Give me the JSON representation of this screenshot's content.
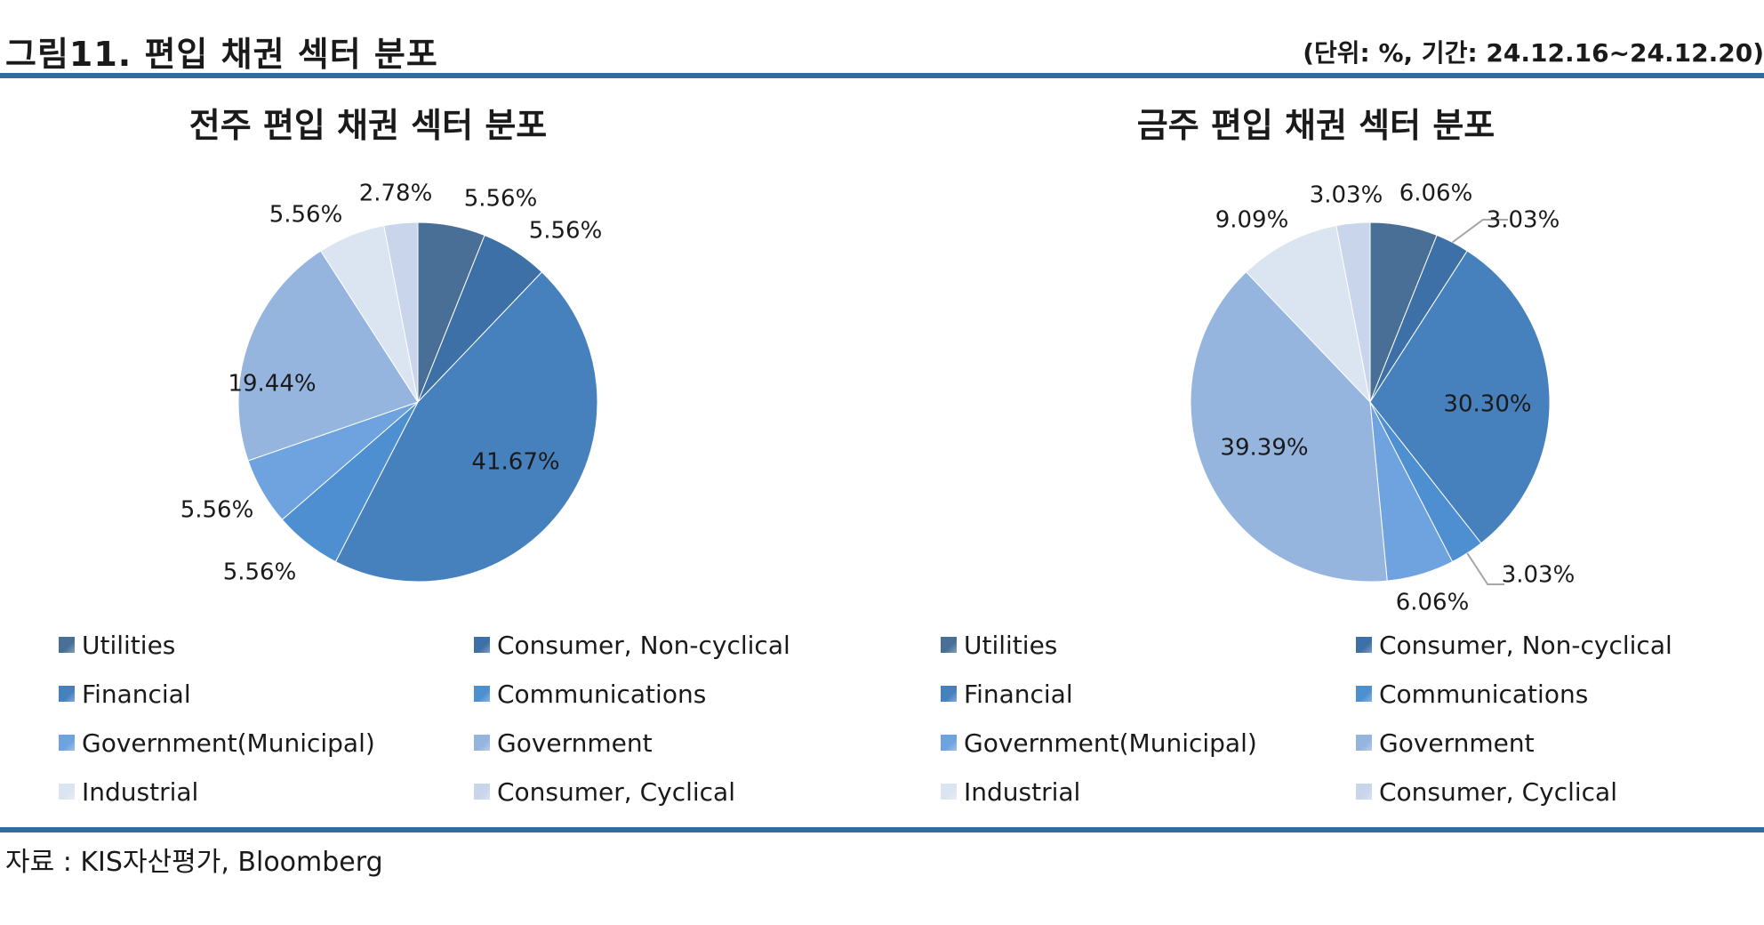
{
  "header": {
    "title": "그림11. 편입 채권 섹터 분포",
    "unit_note": "(단위: %, 기간: 24.12.16~24.12.20)"
  },
  "colors": {
    "Utilities": "#4a6f97",
    "Consumer, Non-cyclical": "#3d70a6",
    "Financial": "#4680bd",
    "Communications": "#4e8fd1",
    "Government(Municipal)": "#6ea3df",
    "Government": "#95b5df",
    "Industrial": "#dbe4f1",
    "Consumer, Cyclical": "#c9d5ea",
    "rule": "#2e6ca8"
  },
  "chart_data": [
    {
      "type": "pie",
      "title": "전주 편입 채권 섹터 분포",
      "categories": [
        "Utilities",
        "Consumer, Non-cyclical",
        "Financial",
        "Communications",
        "Government(Municipal)",
        "Government",
        "Industrial",
        "Consumer, Cyclical"
      ],
      "values": [
        5.56,
        5.56,
        41.67,
        5.56,
        5.56,
        19.44,
        5.56,
        2.78
      ],
      "labels": [
        "5.56%",
        "5.56%",
        "41.67%",
        "5.56%",
        "5.56%",
        "19.44%",
        "5.56%",
        "2.78%"
      ],
      "legend_position": "bottom"
    },
    {
      "type": "pie",
      "title": "금주 편입 채권 섹터 분포",
      "categories": [
        "Utilities",
        "Consumer, Non-cyclical",
        "Financial",
        "Communications",
        "Government(Municipal)",
        "Government",
        "Industrial",
        "Consumer, Cyclical"
      ],
      "values": [
        6.06,
        3.03,
        30.3,
        3.03,
        6.06,
        39.39,
        9.09,
        3.03
      ],
      "labels": [
        "6.06%",
        "3.03%",
        "30.30%",
        "3.03%",
        "6.06%",
        "39.39%",
        "9.09%",
        "3.03%"
      ],
      "legend_position": "bottom"
    }
  ],
  "footer": {
    "source": "자료 : KIS자산평가, Bloomberg"
  }
}
